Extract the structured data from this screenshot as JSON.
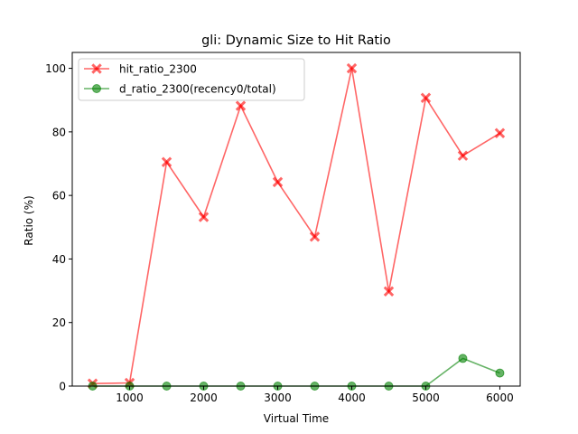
{
  "chart_data": {
    "type": "line",
    "title": "gli: Dynamic Size to Hit Ratio",
    "xlabel": "Virtual Time",
    "ylabel": "Ratio (%)",
    "xlim": [
      225,
      6275
    ],
    "ylim": [
      0,
      105
    ],
    "xticks": [
      1000,
      2000,
      3000,
      4000,
      5000,
      6000
    ],
    "yticks": [
      0,
      20,
      40,
      60,
      80,
      100
    ],
    "grid": false,
    "legend_position": "top-left",
    "series": [
      {
        "name": "hit_ratio_2300",
        "color": "#ff0000",
        "marker": "x-filled",
        "x": [
          500,
          1000,
          1500,
          2000,
          2500,
          3000,
          3500,
          4000,
          4500,
          5000,
          5500,
          6000
        ],
        "values": [
          0.8,
          1.0,
          70.5,
          53.2,
          88.2,
          64.2,
          47.0,
          100.0,
          29.8,
          90.7,
          72.5,
          79.6
        ]
      },
      {
        "name": "d_ratio_2300(recency0/total)",
        "color": "#008000",
        "marker": "circle",
        "x": [
          500,
          1000,
          1500,
          2000,
          2500,
          3000,
          3500,
          4000,
          4500,
          5000,
          5500,
          6000
        ],
        "values": [
          0,
          0,
          0,
          0,
          0,
          0,
          0,
          0,
          0,
          0,
          8.7,
          4.1
        ]
      }
    ]
  }
}
